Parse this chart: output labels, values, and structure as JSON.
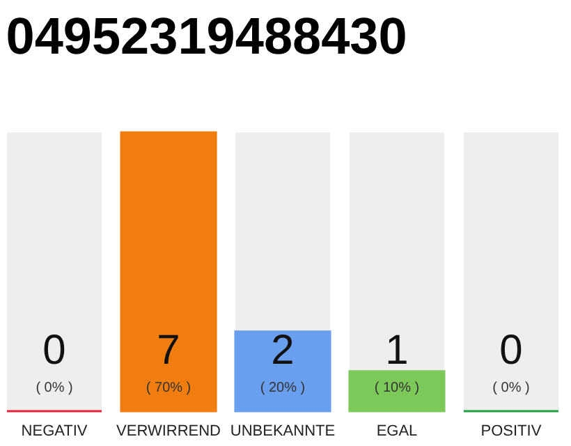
{
  "chart_data": {
    "type": "bar",
    "title": "04952319488430",
    "categories": [
      "NEGATIV",
      "VERWIRREND",
      "UNBEKANNTE",
      "EGAL",
      "POSITIV"
    ],
    "values": [
      0,
      7,
      2,
      1,
      0
    ],
    "colors": [
      "#e8203a",
      "#f07d0e",
      "#6a9eee",
      "#7cc95a",
      "#20a040"
    ],
    "ylim": [
      0,
      7
    ],
    "tick_labels": "x",
    "data_labels": true,
    "annotations": [
      "( 0% )",
      "( 70% )",
      "( 20% )",
      "( 10% )",
      "( 0% )"
    ]
  }
}
